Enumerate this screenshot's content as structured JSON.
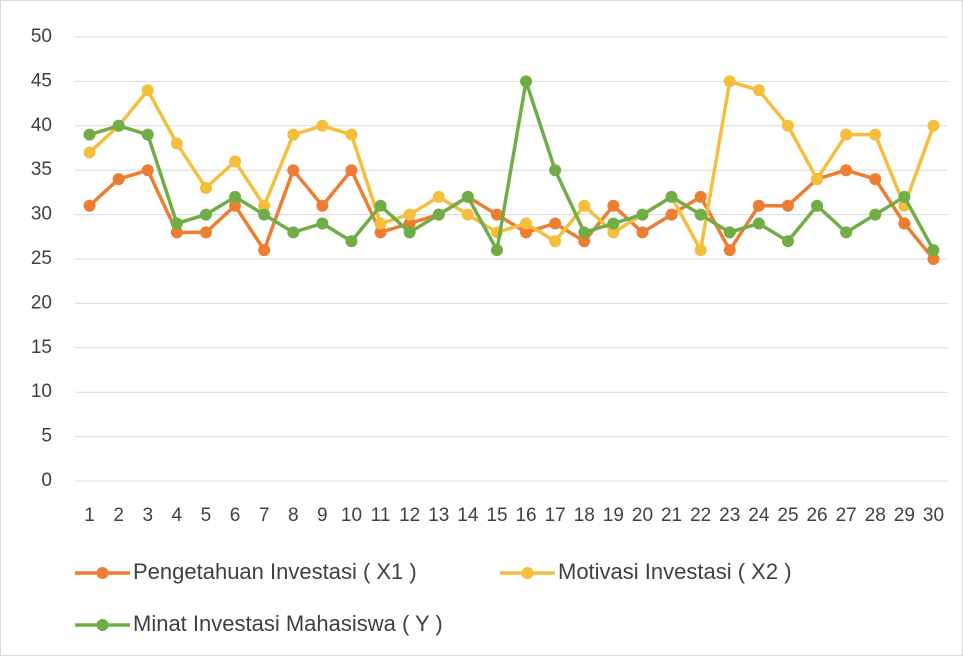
{
  "chart_data": {
    "type": "line",
    "categories": [
      "1",
      "2",
      "3",
      "4",
      "5",
      "6",
      "7",
      "8",
      "9",
      "10",
      "11",
      "12",
      "13",
      "14",
      "15",
      "16",
      "17",
      "18",
      "19",
      "20",
      "21",
      "22",
      "23",
      "24",
      "25",
      "26",
      "27",
      "28",
      "29",
      "30"
    ],
    "series": [
      {
        "name": "Pengetahuan Investasi ( X1 )",
        "color": "#ED7D31",
        "values": [
          31,
          34,
          35,
          28,
          28,
          31,
          26,
          35,
          31,
          35,
          28,
          29,
          30,
          32,
          30,
          28,
          29,
          27,
          31,
          28,
          30,
          32,
          26,
          31,
          31,
          34,
          35,
          34,
          29,
          25
        ]
      },
      {
        "name": "Motivasi Investasi ( X2 )",
        "color": "#F5BE3C",
        "values": [
          37,
          40,
          44,
          38,
          33,
          36,
          31,
          39,
          40,
          39,
          29,
          30,
          32,
          30,
          28,
          29,
          27,
          31,
          28,
          30,
          32,
          26,
          45,
          44,
          40,
          34,
          39,
          39,
          31,
          40
        ]
      },
      {
        "name": "Minat Investasi Mahasiswa ( Y )",
        "color": "#70AD47",
        "values": [
          39,
          40,
          39,
          29,
          30,
          32,
          30,
          28,
          29,
          27,
          31,
          28,
          30,
          32,
          26,
          45,
          35,
          28,
          29,
          30,
          32,
          30,
          28,
          29,
          27,
          31,
          28,
          30,
          32,
          26
        ]
      }
    ],
    "ylim": [
      0,
      50
    ],
    "yticks": [
      0,
      5,
      10,
      15,
      20,
      25,
      30,
      35,
      40,
      45,
      50
    ],
    "grid": true
  }
}
